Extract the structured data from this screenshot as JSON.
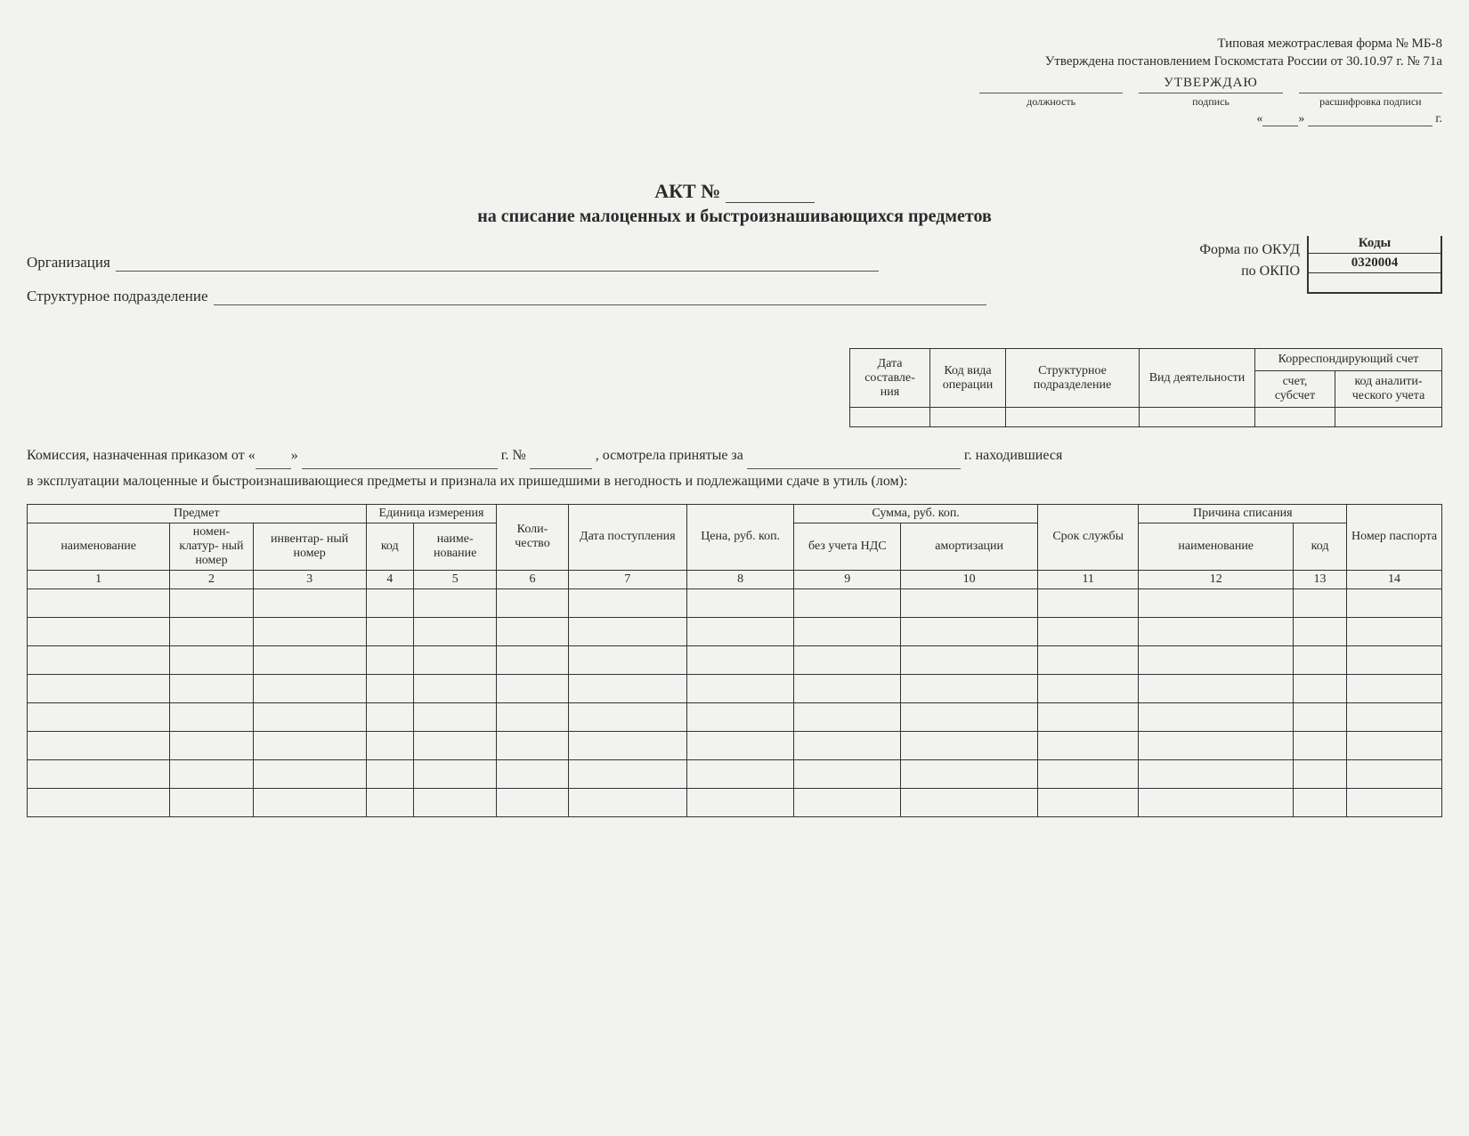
{
  "header": {
    "form_type_line": "Типовая межотраслевая форма № МБ-8",
    "approved_by_line": "Утверждена постановлением Госкомстата России от 30.10.97 г. № 71а",
    "approve_title": "УТВЕРЖДАЮ",
    "sig_labels": {
      "position": "должность",
      "signature": "подпись",
      "decipher": "расшифровка подписи"
    },
    "date_quote_open": "«",
    "date_quote_close": "»",
    "date_year_suffix": "г."
  },
  "title": {
    "main": "АКТ №",
    "sub": "на списание малоценных и быстроизнашивающихся предметов"
  },
  "codes": {
    "header": "Коды",
    "okud_label": "Форма по ОКУД",
    "okud_value": "0320004",
    "okpo_label": "по ОКПО",
    "okpo_value": ""
  },
  "org": {
    "organization_label": "Организация",
    "department_label": "Структурное подразделение"
  },
  "meta": {
    "cols": {
      "date": "Дата составле-\nния",
      "op": "Код вида операции",
      "dept": "Структурное подразделение",
      "activity": "Вид деятельности",
      "corr_group": "Корреспондирующий счет",
      "account": "счет, субсчет",
      "analytic": "код аналити-\nческого учета"
    }
  },
  "commission": {
    "line1_part1": "Комиссия, назначенная приказом от «",
    "line1_part2": "»",
    "line1_part3": "г. №",
    "line1_part4": ", осмотрела принятые за",
    "line1_part5": "г. находившиеся",
    "line2": "в эксплуатации малоценные и быстроизнашивающиеся предметы и признала их пришедшими в негодность и подлежащими сдаче в утиль (лом):"
  },
  "main_table": {
    "headers": {
      "item_group": "Предмет",
      "name": "наименование",
      "nomen": "номен-\nклатур-\nный номер",
      "inv": "инвентар-\nный номер",
      "unit_group": "Единица измерения",
      "unit_code": "код",
      "unit_name": "наиме-\nнование",
      "qty": "Коли-\nчество",
      "date_in": "Дата поступления",
      "price": "Цена, руб. коп.",
      "sum_group": "Сумма, руб. коп.",
      "sum_novat": "без учета НДС",
      "sum_amort": "амортизации",
      "service_life": "Срок службы",
      "reason_group": "Причина списания",
      "reason_name": "наименование",
      "reason_code": "код",
      "passport": "Номер паспорта"
    },
    "col_numbers": [
      "1",
      "2",
      "3",
      "4",
      "5",
      "6",
      "7",
      "8",
      "9",
      "10",
      "11",
      "12",
      "13",
      "14"
    ],
    "blank_rows": 8
  }
}
